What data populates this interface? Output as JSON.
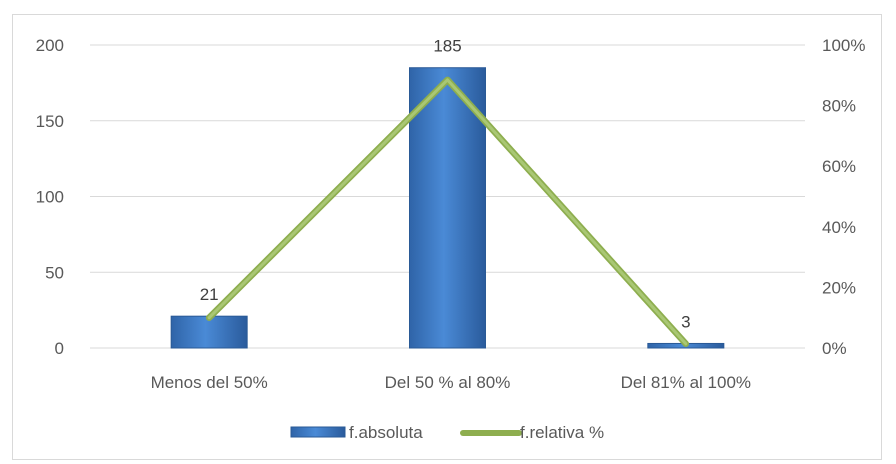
{
  "chart_data": {
    "type": "bar",
    "categories": [
      "Menos del 50%",
      "Del 50 % al 80%",
      "Del 81% al 100%"
    ],
    "series": [
      {
        "name": "f.absoluta",
        "type": "bar",
        "axis": "left",
        "values": [
          21,
          185,
          3
        ],
        "color": "#3f7cc4"
      },
      {
        "name": "f.relativa %",
        "type": "line",
        "axis": "right",
        "values": [
          10,
          88.5,
          1.4
        ],
        "color": "#9bbb59"
      }
    ],
    "data_labels": [
      "21",
      "185",
      "3"
    ],
    "y_left": {
      "min": 0,
      "max": 200,
      "ticks": [
        0,
        50,
        100,
        150,
        200
      ],
      "tick_labels": [
        "0",
        "50",
        "100",
        "150",
        "200"
      ]
    },
    "y_right": {
      "min": 0,
      "max": 100,
      "ticks": [
        0,
        20,
        40,
        60,
        80,
        100
      ],
      "tick_labels": [
        "0%",
        "20%",
        "40%",
        "60%",
        "80%",
        "100%"
      ]
    },
    "grid": true,
    "legend_position": "bottom"
  }
}
